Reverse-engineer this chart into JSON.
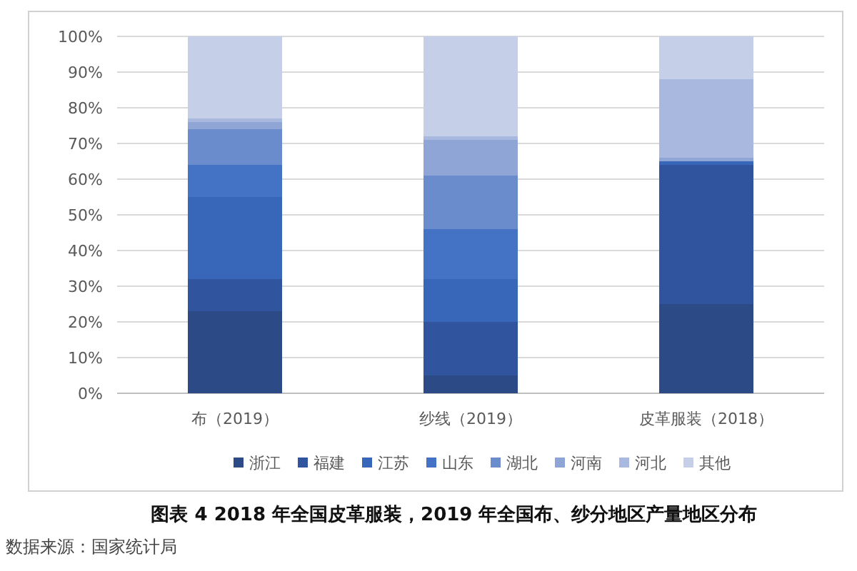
{
  "chart_data": {
    "type": "bar",
    "stacked": true,
    "title": "图表  4  2018 年全国皮革服装，2019 年全国布、纱分地区产量地区分布",
    "annotations": [
      "数据来源：国家统计局"
    ],
    "categories": [
      "布（2019）",
      "纱线（2019）",
      "皮革服装（2018）"
    ],
    "series": [
      {
        "name": "浙江",
        "color": "#2b4a86",
        "values": [
          23,
          5,
          25
        ]
      },
      {
        "name": "福建",
        "color": "#30549e",
        "values": [
          9,
          15,
          39
        ]
      },
      {
        "name": "江苏",
        "color": "#3866b8",
        "values": [
          23,
          12,
          1
        ]
      },
      {
        "name": "山东",
        "color": "#4472c4",
        "values": [
          9,
          14,
          0
        ]
      },
      {
        "name": "湖北",
        "color": "#6a8ccd",
        "values": [
          10,
          15,
          0
        ]
      },
      {
        "name": "河南",
        "color": "#8ea5d6",
        "values": [
          2,
          10,
          1
        ]
      },
      {
        "name": "河北",
        "color": "#a9b8de",
        "values": [
          1,
          1,
          22
        ]
      },
      {
        "name": "其他",
        "color": "#c5cfe8",
        "values": [
          23,
          28,
          12
        ]
      }
    ],
    "ylim": [
      0,
      100
    ],
    "yticks": [
      {
        "value": 0,
        "label": "0%"
      },
      {
        "value": 10,
        "label": "10%"
      },
      {
        "value": 20,
        "label": "20%"
      },
      {
        "value": 30,
        "label": "30%"
      },
      {
        "value": 40,
        "label": "40%"
      },
      {
        "value": 50,
        "label": "50%"
      },
      {
        "value": 60,
        "label": "60%"
      },
      {
        "value": 70,
        "label": "70%"
      },
      {
        "value": 80,
        "label": "80%"
      },
      {
        "value": 90,
        "label": "90%"
      },
      {
        "value": 100,
        "label": "100%"
      }
    ],
    "grid": "y",
    "legend": "bottom"
  }
}
